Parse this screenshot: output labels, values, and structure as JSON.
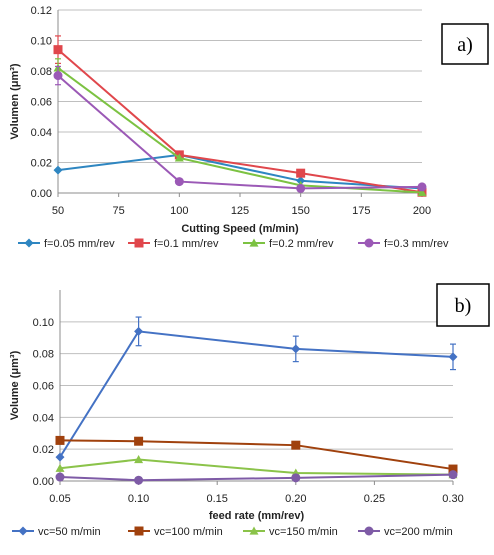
{
  "chart_data": [
    {
      "type": "line",
      "panel_label": "a)",
      "xlabel": "Cutting Speed (m/min)",
      "ylabel": "Volumen (μm³)",
      "x": [
        50,
        100,
        150,
        200
      ],
      "xlim": [
        50,
        200
      ],
      "ylim": [
        0,
        0.12
      ],
      "x_ticks": [
        "50",
        "75",
        "100",
        "125",
        "150",
        "175",
        "200"
      ],
      "y_ticks": [
        "0.00",
        "0.02",
        "0.04",
        "0.06",
        "0.08",
        "0.10",
        "0.12"
      ],
      "grid": "horizontal",
      "legend_position": "bottom",
      "series": [
        {
          "name": "f=0.05 mm/rev",
          "color": "#2E86C1",
          "marker": "diamond",
          "values": [
            0.015,
            0.025,
            0.008,
            0.003
          ]
        },
        {
          "name": "f=0.1 mm/rev",
          "color": "#E0474C",
          "marker": "square",
          "values": [
            0.094,
            0.025,
            0.013,
            0.0005
          ],
          "error": [
            0.009,
            0,
            0,
            0
          ]
        },
        {
          "name": "f=0.2 mm/rev",
          "color": "#7CC242",
          "marker": "triangle",
          "values": [
            0.082,
            0.023,
            0.005,
            0.0003
          ],
          "error": [
            0.006,
            0,
            0,
            0
          ]
        },
        {
          "name": "f=0.3 mm/rev",
          "color": "#9B59B6",
          "marker": "circle",
          "values": [
            0.077,
            0.0075,
            0.003,
            0.004
          ],
          "error": [
            0.006,
            0,
            0,
            0
          ]
        }
      ]
    },
    {
      "type": "line",
      "panel_label": "b)",
      "xlabel": "feed rate (mm/rev)",
      "ylabel": "Volume (μm³)",
      "x": [
        0.05,
        0.1,
        0.2,
        0.3
      ],
      "xlim": [
        0.05,
        0.3
      ],
      "ylim": [
        0,
        0.12
      ],
      "x_ticks": [
        "0.05",
        "0.10",
        "0.15",
        "0.20",
        "0.25",
        "0.30"
      ],
      "y_ticks": [
        "0.00",
        "0.02",
        "0.04",
        "0.06",
        "0.08",
        "0.10"
      ],
      "grid": "horizontal",
      "legend_position": "bottom",
      "series": [
        {
          "name": "vc=50 m/min",
          "color": "#4472C4",
          "marker": "diamond",
          "values": [
            0.015,
            0.094,
            0.083,
            0.078
          ],
          "error": [
            0,
            0.009,
            0.008,
            0.008
          ]
        },
        {
          "name": "vc=100 m/min",
          "color": "#A0410D",
          "marker": "square",
          "values": [
            0.0255,
            0.025,
            0.0225,
            0.0075
          ],
          "error": [
            0,
            0,
            0,
            0
          ]
        },
        {
          "name": "vc=150 m/min",
          "color": "#8BC34A",
          "marker": "triangle",
          "values": [
            0.008,
            0.0135,
            0.005,
            0.004
          ],
          "error": [
            0,
            0,
            0,
            0
          ]
        },
        {
          "name": "vc=200 m/min",
          "color": "#7E5BA6",
          "marker": "circle",
          "values": [
            0.0025,
            0.0005,
            0.002,
            0.004
          ],
          "error": [
            0,
            0,
            0,
            0
          ]
        }
      ]
    }
  ]
}
